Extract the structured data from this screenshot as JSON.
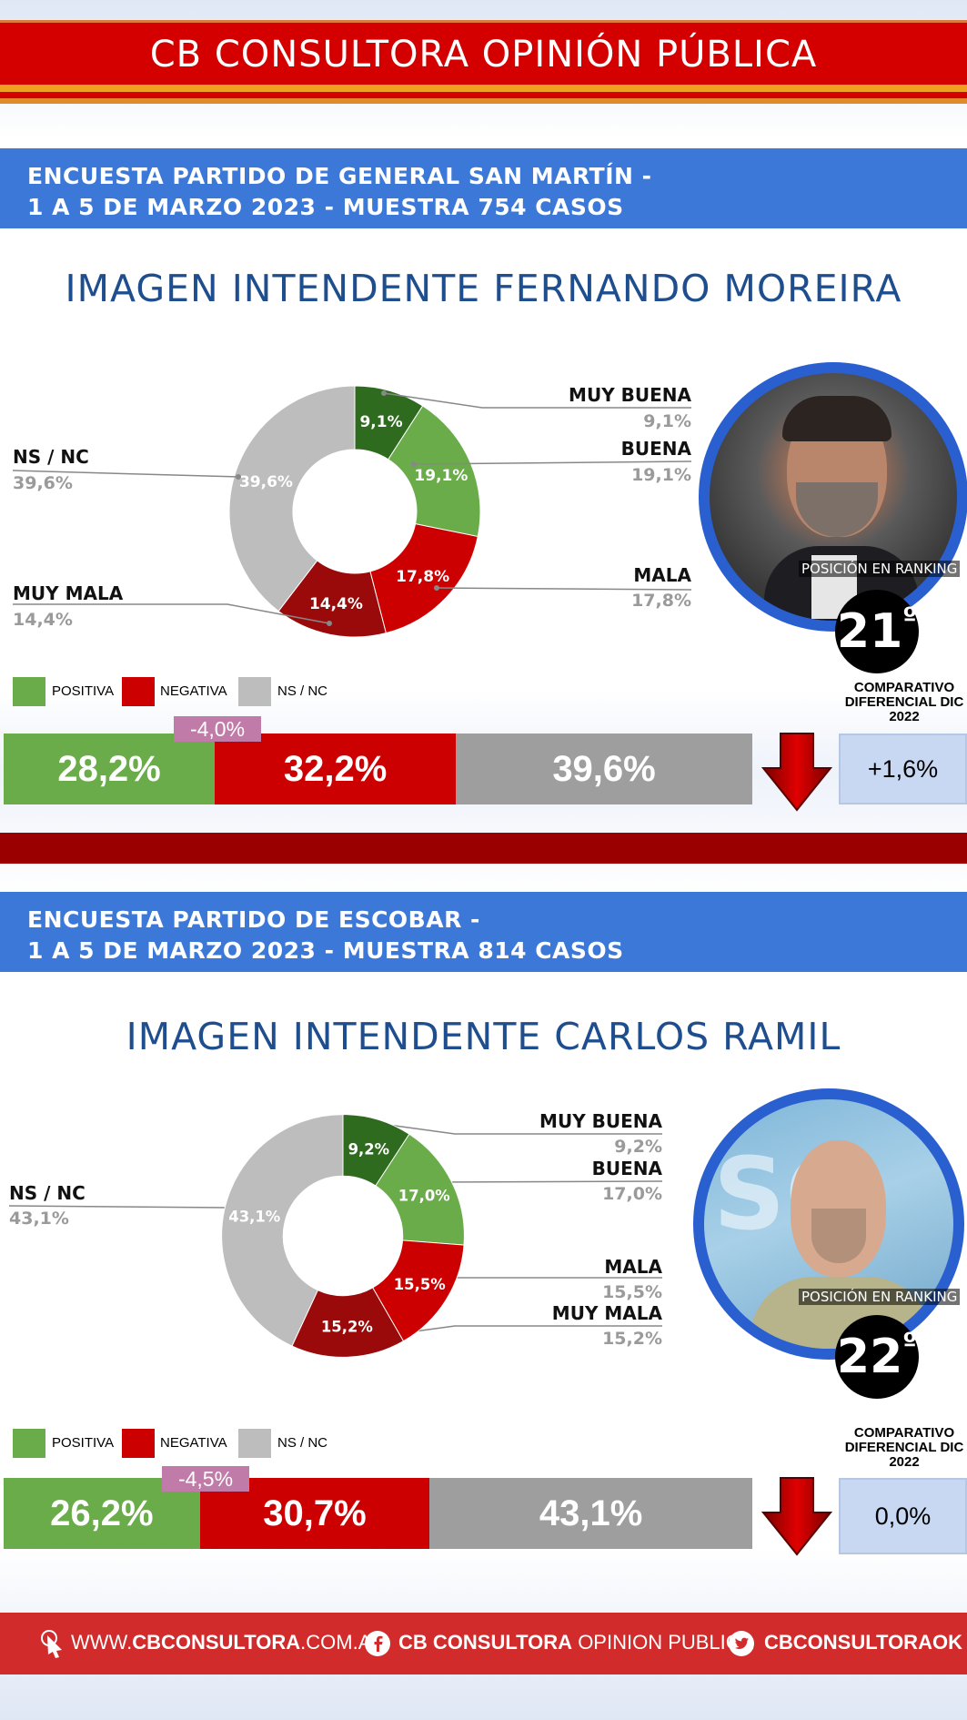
{
  "brand": {
    "title": "CB CONSULTORA OPINIÓN PÚBLICA"
  },
  "surveys": [
    {
      "header_line1": "ENCUESTA PARTIDO DE GENERAL SAN MARTÍN -",
      "header_line2": "1 A 5 DE MARZO 2023 - MUESTRA 754 CASOS",
      "title": "IMAGEN INTENDENTE  FERNANDO MOREIRA",
      "ranking_label": "POSICIÓN EN RANKING",
      "ranking_number": "21",
      "ranking_suffix": "º",
      "legend": [
        "POSITIVA",
        "NEGATIVA",
        "NS / NC"
      ],
      "summary": {
        "positiva": "28,2%",
        "negativa": "32,2%",
        "nsnc": "39,6%"
      },
      "diff_tag": "-4,0%",
      "comparativo_title": "COMPARATIVO DIFERENCIAL DIC  2022",
      "comparativo_value": "+1,6%"
    },
    {
      "header_line1": "ENCUESTA PARTIDO DE ESCOBAR -",
      "header_line2": "1 A 5 DE MARZO 2023 - MUESTRA 814 CASOS",
      "title": "IMAGEN INTENDENTE  CARLOS RAMIL",
      "ranking_label": "POSICIÓN EN RANKING",
      "ranking_number": "22",
      "ranking_suffix": "º",
      "legend": [
        "POSITIVA",
        "NEGATIVA",
        "NS / NC"
      ],
      "summary": {
        "positiva": "26,2%",
        "negativa": "30,7%",
        "nsnc": "43,1%"
      },
      "diff_tag": "-4,5%",
      "comparativo_title": "COMPARATIVO DIFERENCIAL DIC 2022",
      "comparativo_value": "0,0%"
    }
  ],
  "chart_data": [
    {
      "type": "pie",
      "categories": [
        "MUY BUENA",
        "BUENA",
        "MALA",
        "MUY MALA",
        "NS / NC"
      ],
      "values": [
        9.1,
        19.1,
        17.8,
        14.4,
        39.6
      ],
      "labels": [
        "9,1%",
        "19,1%",
        "17,8%",
        "14,4%",
        "39,6%"
      ],
      "colors": [
        "#2e6b1e",
        "#6aab4a",
        "#cc0000",
        "#9a0a0a",
        "#bdbdbd"
      ]
    },
    {
      "type": "bar",
      "categories": [
        "POSITIVA",
        "NEGATIVA",
        "NS / NC"
      ],
      "values": [
        28.2,
        32.2,
        39.6
      ],
      "colors": [
        "#6aab4a",
        "#cc0000",
        "#9e9e9e"
      ],
      "stacked": true
    },
    {
      "type": "pie",
      "categories": [
        "MUY BUENA",
        "BUENA",
        "MALA",
        "MUY MALA",
        "NS / NC"
      ],
      "values": [
        9.2,
        17.0,
        15.5,
        15.2,
        43.1
      ],
      "labels": [
        "9,2%",
        "17,0%",
        "15,5%",
        "15,2%",
        "43,1%"
      ],
      "colors": [
        "#2e6b1e",
        "#6aab4a",
        "#cc0000",
        "#9a0a0a",
        "#bdbdbd"
      ]
    },
    {
      "type": "bar",
      "categories": [
        "POSITIVA",
        "NEGATIVA",
        "NS / NC"
      ],
      "values": [
        26.2,
        30.7,
        43.1
      ],
      "colors": [
        "#6aab4a",
        "#cc0000",
        "#9e9e9e"
      ],
      "stacked": true
    }
  ],
  "footer": {
    "web_prefix": "WWW.",
    "web_bold": "CBCONSULTORA",
    "web_suffix": ".COM.AR",
    "fb_bold": "CB CONSULTORA",
    "fb_rest": " OPINION PUBLICA",
    "twitter": "CBCONSULTORAOK"
  }
}
